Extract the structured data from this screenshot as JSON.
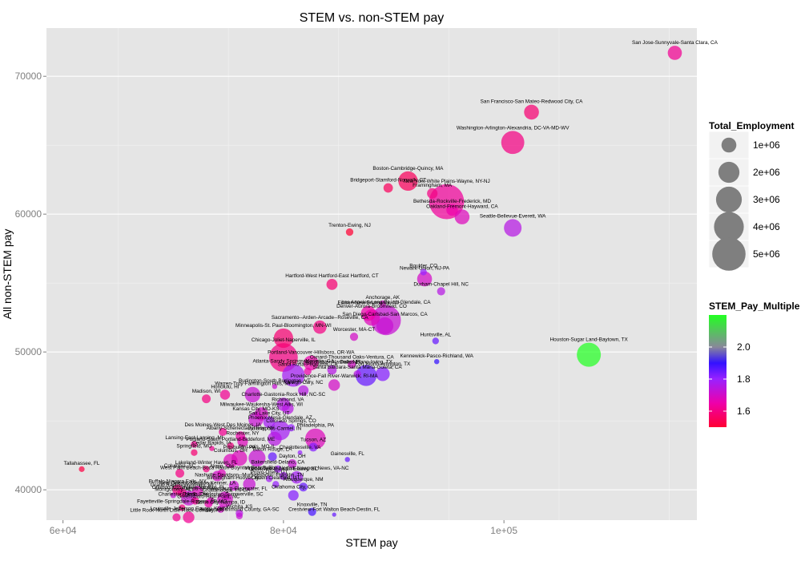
{
  "chart_data": {
    "type": "scatter",
    "title": "STEM vs. non-STEM pay",
    "xlabel": "STEM pay",
    "ylabel": "All non-STEM pay",
    "xlim": [
      58500,
      117500
    ],
    "ylim": [
      37800,
      73500
    ],
    "x_ticks": [
      {
        "v": 60000,
        "label": "6e+04"
      },
      {
        "v": 80000,
        "label": "8e+04"
      },
      {
        "v": 100000,
        "label": "1e+05"
      }
    ],
    "y_ticks": [
      {
        "v": 40000,
        "label": "40000"
      },
      {
        "v": 50000,
        "label": "50000"
      },
      {
        "v": 60000,
        "label": "60000"
      },
      {
        "v": 70000,
        "label": "70000"
      }
    ],
    "grid": true,
    "size_legend": {
      "title": "Total_Employment",
      "entries": [
        {
          "value": 1000000,
          "label": "1e+06"
        },
        {
          "value": 2000000,
          "label": "2e+06"
        },
        {
          "value": 3000000,
          "label": "3e+06"
        },
        {
          "value": 4000000,
          "label": "4e+06"
        },
        {
          "value": 5000000,
          "label": "5e+06"
        }
      ]
    },
    "color_legend": {
      "title": "STEM_Pay_Multiple",
      "range": [
        1.5,
        2.2
      ],
      "ticks": [
        {
          "v": 1.6,
          "label": "1.6"
        },
        {
          "v": 1.8,
          "label": "1.8"
        },
        {
          "v": 2.0,
          "label": "2.0"
        }
      ],
      "stops": [
        {
          "v": 1.5,
          "color": "#ff0033"
        },
        {
          "v": 1.65,
          "color": "#ee00aa"
        },
        {
          "v": 1.8,
          "color": "#9922ff"
        },
        {
          "v": 1.9,
          "color": "#3311ff"
        },
        {
          "v": 2.0,
          "color": "#888899"
        },
        {
          "v": 2.2,
          "color": "#22ff22"
        }
      ]
    },
    "points": [
      {
        "label": "San Jose-Sunnyvale-Santa Clara, CA",
        "x": 115500,
        "y": 71700,
        "emp": 900000,
        "mult": 1.62
      },
      {
        "label": "San Francisco-San Mateo-Redwood City, CA",
        "x": 102500,
        "y": 67400,
        "emp": 1000000,
        "mult": 1.58
      },
      {
        "label": "Washington-Arlington-Alexandria, DC-VA-MD-WV",
        "x": 100800,
        "y": 65200,
        "emp": 2400000,
        "mult": 1.6
      },
      {
        "label": "Boston-Cambridge-Quincy, MA",
        "x": 91300,
        "y": 62400,
        "emp": 1700000,
        "mult": 1.55
      },
      {
        "label": "Bridgeport-Stamford-Norwalk, CT",
        "x": 89500,
        "y": 61900,
        "emp": 400000,
        "mult": 1.55
      },
      {
        "label": "Framingham, MA",
        "x": 93500,
        "y": 61500,
        "emp": 500000,
        "mult": 1.6
      },
      {
        "label": "New York-White Plains-Wayne, NY-NJ",
        "x": 94800,
        "y": 60900,
        "emp": 5500000,
        "mult": 1.63
      },
      {
        "label": "Bethesda-Rockville-Frederick, MD",
        "x": 95300,
        "y": 60300,
        "emp": 600000,
        "mult": 1.65
      },
      {
        "label": "Oakland-Fremont-Hayward, CA",
        "x": 96200,
        "y": 59800,
        "emp": 1000000,
        "mult": 1.68
      },
      {
        "label": "Seattle-Bellevue-Everett, WA",
        "x": 100800,
        "y": 59000,
        "emp": 1400000,
        "mult": 1.75
      },
      {
        "label": "Trenton-Ewing, NJ",
        "x": 86000,
        "y": 58700,
        "emp": 250000,
        "mult": 1.5
      },
      {
        "label": "Boulder, CO",
        "x": 92700,
        "y": 55800,
        "emp": 200000,
        "mult": 1.8
      },
      {
        "label": "Newark-Union, NJ-PA",
        "x": 92800,
        "y": 55300,
        "emp": 1000000,
        "mult": 1.7
      },
      {
        "label": "Hartford-West Hartford-East Hartford, CT",
        "x": 84400,
        "y": 54900,
        "emp": 550000,
        "mult": 1.58
      },
      {
        "label": "Durham-Chapel Hill, NC",
        "x": 94300,
        "y": 54400,
        "emp": 300000,
        "mult": 1.75
      },
      {
        "label": "Anchorage, AK",
        "x": 89000,
        "y": 53500,
        "emp": 200000,
        "mult": 1.7
      },
      {
        "label": "Edison-New Brunswick, NJ",
        "x": 87700,
        "y": 52800,
        "emp": 1000000,
        "mult": 1.65
      },
      {
        "label": "Los Angeles-Long Beach-Glendale, CA",
        "x": 89300,
        "y": 52300,
        "emp": 4000000,
        "mult": 1.72
      },
      {
        "label": "Sacramento--Arden-Arcade--Roseville, CA",
        "x": 83300,
        "y": 51800,
        "emp": 800000,
        "mult": 1.6
      },
      {
        "label": "Denver-Aurora-Broomfield, CO",
        "x": 88000,
        "y": 52500,
        "emp": 1200000,
        "mult": 1.68
      },
      {
        "label": "San Diego-Carlsbad-San Marcos, CA",
        "x": 89200,
        "y": 51900,
        "emp": 1300000,
        "mult": 1.72
      },
      {
        "label": "Worcester, MA-CT",
        "x": 86400,
        "y": 51100,
        "emp": 300000,
        "mult": 1.7
      },
      {
        "label": "Minneapolis-St. Paul-Bloomington, MN-WI",
        "x": 80000,
        "y": 51000,
        "emp": 1700000,
        "mult": 1.58
      },
      {
        "label": "Huntsville, AL",
        "x": 93800,
        "y": 50800,
        "emp": 200000,
        "mult": 1.85
      },
      {
        "label": "Chicago-Joliet-Naperville, IL",
        "x": 80000,
        "y": 49600,
        "emp": 3700000,
        "mult": 1.6
      },
      {
        "label": "Houston-Sugar Land-Baytown, TX",
        "x": 107700,
        "y": 49800,
        "emp": 2600000,
        "mult": 2.2
      },
      {
        "label": "Kennewick-Pasco-Richland, WA",
        "x": 93900,
        "y": 49300,
        "emp": 120000,
        "mult": 1.9
      },
      {
        "label": "Portland-Vancouver-Hillsboro, OR-WA",
        "x": 82500,
        "y": 49200,
        "emp": 1000000,
        "mult": 1.65
      },
      {
        "label": "Manchester-Nashua, NH",
        "x": 84400,
        "y": 48700,
        "emp": 400000,
        "mult": 1.75
      },
      {
        "label": "Oxnard-Thousand Oaks-Ventura, CA",
        "x": 86200,
        "y": 49100,
        "emp": 300000,
        "mult": 1.7
      },
      {
        "label": "Santa Rosa-Petaluma, CA",
        "x": 82200,
        "y": 48600,
        "emp": 250000,
        "mult": 1.65
      },
      {
        "label": "Santa Barbara-Santa Maria-Goleta, CA",
        "x": 86700,
        "y": 48400,
        "emp": 250000,
        "mult": 1.75
      },
      {
        "label": "Atlanta-Sandy Springs-Marietta, GA",
        "x": 80900,
        "y": 48300,
        "emp": 2300000,
        "mult": 1.78
      },
      {
        "label": "Dallas-Plano-Irving, TX",
        "x": 87500,
        "y": 48300,
        "emp": 2000000,
        "mult": 1.85
      },
      {
        "label": "Fort Worth-Arlington, TX",
        "x": 89000,
        "y": 48400,
        "emp": 900000,
        "mult": 1.82
      },
      {
        "label": "Providence-Fall River-Warwick, RI-MA",
        "x": 84600,
        "y": 47600,
        "emp": 600000,
        "mult": 1.7
      },
      {
        "label": "Burlington-South Burlington, VT",
        "x": 79200,
        "y": 47500,
        "emp": 120000,
        "mult": 1.72
      },
      {
        "label": "Raleigh-Cary, NC",
        "x": 81800,
        "y": 47200,
        "emp": 500000,
        "mult": 1.75
      },
      {
        "label": "Warren-Troy-Farmington Hills, MI",
        "x": 77200,
        "y": 46900,
        "emp": 1100000,
        "mult": 1.72
      },
      {
        "label": "Honolulu, HI",
        "x": 74700,
        "y": 46900,
        "emp": 450000,
        "mult": 1.62
      },
      {
        "label": "Madison, WI",
        "x": 73000,
        "y": 46600,
        "emp": 350000,
        "mult": 1.6
      },
      {
        "label": "Charlotte-Gastonia-Rock Hill, NC-SC",
        "x": 80000,
        "y": 46200,
        "emp": 800000,
        "mult": 1.75
      },
      {
        "label": "Richmond, VA",
        "x": 80400,
        "y": 45900,
        "emp": 600000,
        "mult": 1.75
      },
      {
        "label": "Milwaukee-Waukesha-West Allis, WI",
        "x": 78000,
        "y": 45500,
        "emp": 800000,
        "mult": 1.7
      },
      {
        "label": "Kansas City, MO-KS",
        "x": 77500,
        "y": 45100,
        "emp": 1000000,
        "mult": 1.72
      },
      {
        "label": "Salt Lake City, UT",
        "x": 78700,
        "y": 44900,
        "emp": 600000,
        "mult": 1.78
      },
      {
        "label": "Phoenix-Mesa-Glendale, AZ",
        "x": 79700,
        "y": 44300,
        "emp": 1700000,
        "mult": 1.78
      },
      {
        "label": "Colorado Springs, CO",
        "x": 80700,
        "y": 44500,
        "emp": 250000,
        "mult": 1.8
      },
      {
        "label": "Des Moines-West Des Moines, IA",
        "x": 74500,
        "y": 44200,
        "emp": 300000,
        "mult": 1.62
      },
      {
        "label": "Albany-Schenectady-Troy, NY",
        "x": 76100,
        "y": 43900,
        "emp": 400000,
        "mult": 1.65
      },
      {
        "label": "Indianapolis-Carmel, IN",
        "x": 79200,
        "y": 43700,
        "emp": 900000,
        "mult": 1.75
      },
      {
        "label": "Philadelphia, PA",
        "x": 82900,
        "y": 43700,
        "emp": 1900000,
        "mult": 1.68
      },
      {
        "label": "Rochester, NY",
        "x": 76300,
        "y": 43500,
        "emp": 500000,
        "mult": 1.68
      },
      {
        "label": "Lansing-East Lansing, MI",
        "x": 71900,
        "y": 43300,
        "emp": 200000,
        "mult": 1.62
      },
      {
        "label": "Portland-South Portland-Biddeford, ME",
        "x": 75200,
        "y": 43200,
        "emp": 200000,
        "mult": 1.6
      },
      {
        "label": "Cedar Rapids, IA",
        "x": 73500,
        "y": 43000,
        "emp": 120000,
        "mult": 1.62
      },
      {
        "label": "Tucson, AZ",
        "x": 82700,
        "y": 43100,
        "emp": 350000,
        "mult": 1.82
      },
      {
        "label": "Charlottesville, VA",
        "x": 81500,
        "y": 42700,
        "emp": 100000,
        "mult": 1.8
      },
      {
        "label": "Gainesville, FL",
        "x": 85800,
        "y": 42200,
        "emp": 120000,
        "mult": 1.85
      },
      {
        "label": "Baton Rouge, LA",
        "x": 79000,
        "y": 42400,
        "emp": 350000,
        "mult": 1.85
      },
      {
        "label": "Pittsburgh, PA",
        "x": 76000,
        "y": 42300,
        "emp": 1100000,
        "mult": 1.68
      },
      {
        "label": "St. Louis, MO-IL",
        "x": 77600,
        "y": 42300,
        "emp": 1300000,
        "mult": 1.72
      },
      {
        "label": "Columbus, OH",
        "x": 75200,
        "y": 42100,
        "emp": 900000,
        "mult": 1.68
      },
      {
        "label": "Dayton, OH",
        "x": 80800,
        "y": 41900,
        "emp": 350000,
        "mult": 1.72
      },
      {
        "label": "Bakersfield-Delano, CA",
        "x": 79500,
        "y": 41500,
        "emp": 250000,
        "mult": 1.78
      },
      {
        "label": "Akron, OH",
        "x": 74400,
        "y": 41200,
        "emp": 300000,
        "mult": 1.68
      },
      {
        "label": "West Palm Beach-Boca Raton-Boynton Beach, FL",
        "x": 74000,
        "y": 41000,
        "emp": 500000,
        "mult": 1.7
      },
      {
        "label": "Virginia Beach-Norfolk-Newport News, VA-NC",
        "x": 81200,
        "y": 40900,
        "emp": 700000,
        "mult": 1.78
      },
      {
        "label": "Nashville-Davidson--Murfreesboro--Franklin, TN",
        "x": 76900,
        "y": 40400,
        "emp": 700000,
        "mult": 1.72
      },
      {
        "label": "Birmingham-Hoover, AL",
        "x": 75500,
        "y": 40300,
        "emp": 450000,
        "mult": 1.72
      },
      {
        "label": "Albuquerque, NM",
        "x": 81800,
        "y": 40200,
        "emp": 350000,
        "mult": 1.85
      },
      {
        "label": "Buffalo-Niagara Falls, NY",
        "x": 70400,
        "y": 40000,
        "emp": 500000,
        "mult": 1.6
      },
      {
        "label": "New Orleans-Metairie-Kenner, LA",
        "x": 72200,
        "y": 39900,
        "emp": 500000,
        "mult": 1.68
      },
      {
        "label": "Grand Rapids-Wyoming, MI",
        "x": 70800,
        "y": 39800,
        "emp": 350000,
        "mult": 1.62
      },
      {
        "label": "Oklahoma City, OK",
        "x": 80900,
        "y": 39600,
        "emp": 500000,
        "mult": 1.82
      },
      {
        "label": "Chattanooga, TN-GA",
        "x": 74800,
        "y": 39500,
        "emp": 200000,
        "mult": 1.7
      },
      {
        "label": "Tampa-St. Petersburg-Clearwater, FL",
        "x": 74700,
        "y": 39300,
        "emp": 1100000,
        "mult": 1.7
      },
      {
        "label": "Charleston-North Charleston-Summerville, SC",
        "x": 73400,
        "y": 39200,
        "emp": 250000,
        "mult": 1.68
      },
      {
        "label": "Toledo, OH",
        "x": 72000,
        "y": 39200,
        "emp": 250000,
        "mult": 1.62
      },
      {
        "label": "Greensboro-High Point, NC",
        "x": 73200,
        "y": 39000,
        "emp": 300000,
        "mult": 1.65
      },
      {
        "label": "Wichita, KS",
        "x": 76000,
        "y": 38300,
        "emp": 250000,
        "mult": 1.75
      },
      {
        "label": "Knoxville, TN",
        "x": 82600,
        "y": 38400,
        "emp": 300000,
        "mult": 1.88
      },
      {
        "label": "Crestview-Fort Walton Beach-Destin, FL",
        "x": 84600,
        "y": 38200,
        "emp": 80000,
        "mult": 1.85
      },
      {
        "label": "Fayetteville-Springdale-Rogers, AR-MO",
        "x": 70800,
        "y": 38700,
        "emp": 200000,
        "mult": 1.6
      },
      {
        "label": "Boise City-Nampa, ID",
        "x": 74300,
        "y": 38600,
        "emp": 250000,
        "mult": 1.7
      },
      {
        "label": "Augusta-Richmond County, GA-SC",
        "x": 76000,
        "y": 38100,
        "emp": 200000,
        "mult": 1.72
      },
      {
        "label": "Little Rock-North Little Rock-Conway, AR",
        "x": 70300,
        "y": 38000,
        "emp": 300000,
        "mult": 1.62
      },
      {
        "label": "Louisville-Jefferson County, KY-IN",
        "x": 71400,
        "y": 38000,
        "emp": 600000,
        "mult": 1.62
      },
      {
        "label": "Tallahassee, FL",
        "x": 61700,
        "y": 41500,
        "emp": 150000,
        "mult": 1.52
      },
      {
        "label": "Columbia, SC",
        "x": 70600,
        "y": 41200,
        "emp": 350000,
        "mult": 1.6
      },
      {
        "label": "Greenville-Mauldin-Easley, SC",
        "x": 80000,
        "y": 41000,
        "emp": 300000,
        "mult": 1.78
      },
      {
        "label": "Provo-Orem, UT",
        "x": 78700,
        "y": 40800,
        "emp": 200000,
        "mult": 1.78
      },
      {
        "label": "Ogden-Clearfield, UT",
        "x": 79300,
        "y": 40400,
        "emp": 200000,
        "mult": 1.8
      },
      {
        "label": "Montgomery, AL",
        "x": 70000,
        "y": 39600,
        "emp": 150000,
        "mult": 1.72
      },
      {
        "label": "Orlando-Kissimmee-Sanford, FL",
        "x": 71400,
        "y": 39400,
        "emp": 1000000,
        "mult": 1.72
      },
      {
        "label": "Lakeland-Winter Haven, FL",
        "x": 73000,
        "y": 41500,
        "emp": 200000,
        "mult": 1.6
      },
      {
        "label": "Springfield, MO",
        "x": 71900,
        "y": 42700,
        "emp": 200000,
        "mult": 1.58
      }
    ]
  }
}
